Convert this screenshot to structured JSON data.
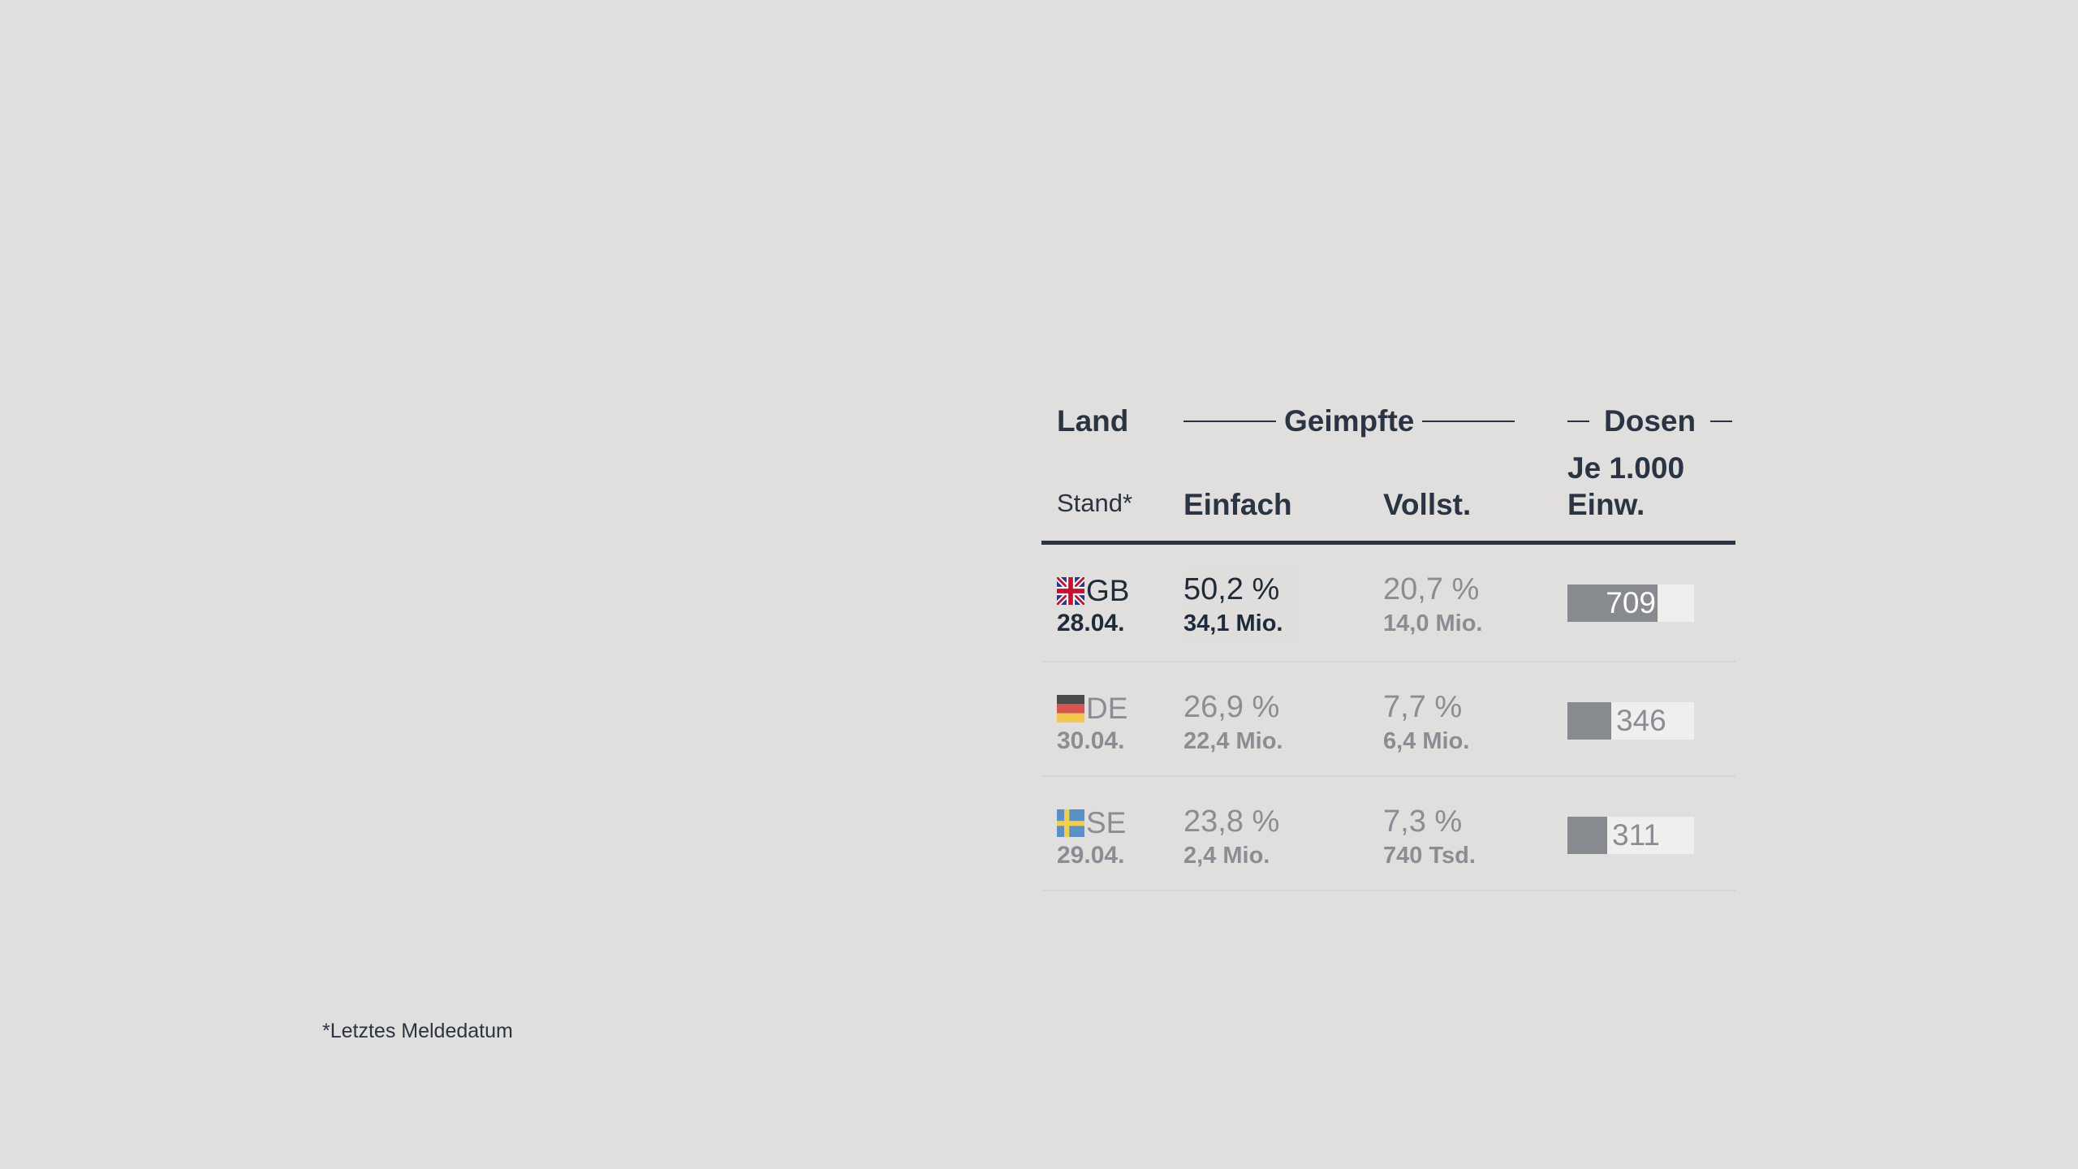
{
  "header": {
    "land": "Land",
    "stand": "Stand*",
    "group_geimpfte": "Geimpfte",
    "group_dosen": "Dosen",
    "einfach": "Einfach",
    "vollst": "Vollst.",
    "dosen_line1": "Je 1.000",
    "dosen_line2": "Einw."
  },
  "footnote": "*Letztes Meldedatum",
  "chart_data": {
    "type": "table",
    "bar_max": 1000,
    "rows": [
      {
        "code": "GB",
        "flag": "uk-flag-icon",
        "date": "28.04.",
        "einfach_pct": "50,2 %",
        "einfach_abs": "34,1 Mio.",
        "vollst_pct": "20,7 %",
        "vollst_abs": "14,0 Mio.",
        "dosen": 709,
        "dosen_label": "709",
        "highlight": true
      },
      {
        "code": "DE",
        "flag": "germany-flag-icon",
        "date": "30.04.",
        "einfach_pct": "26,9 %",
        "einfach_abs": "22,4 Mio.",
        "vollst_pct": "7,7 %",
        "vollst_abs": "6,4 Mio.",
        "dosen": 346,
        "dosen_label": "346",
        "highlight": false
      },
      {
        "code": "SE",
        "flag": "sweden-flag-icon",
        "date": "29.04.",
        "einfach_pct": "23,8 %",
        "einfach_abs": "2,4 Mio.",
        "vollst_pct": "7,3 %",
        "vollst_abs": "740 Tsd.",
        "dosen": 311,
        "dosen_label": "311",
        "highlight": false
      }
    ]
  }
}
